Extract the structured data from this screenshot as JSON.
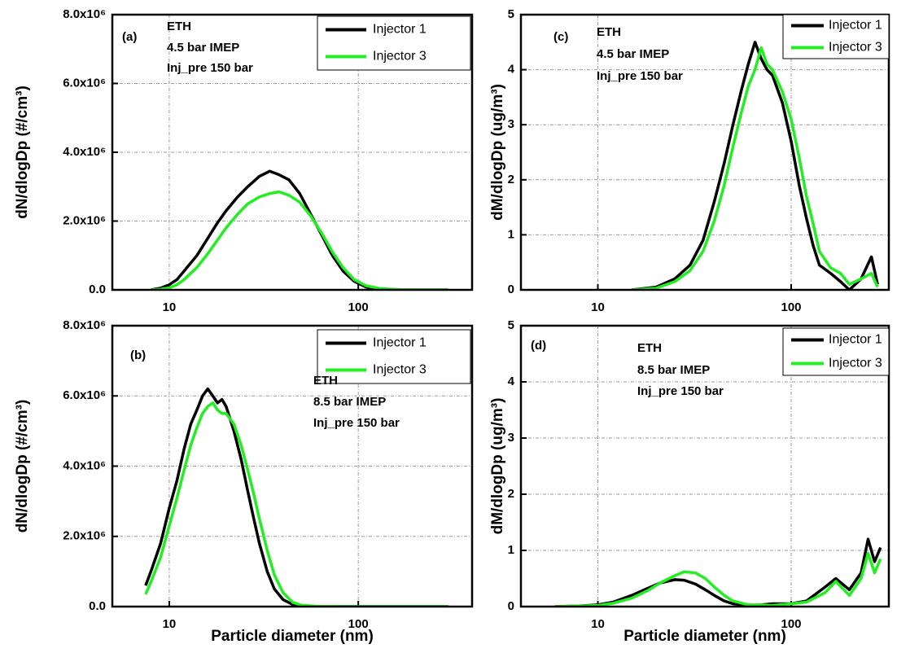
{
  "chart_data": [
    {
      "type": "line",
      "x_scale": "log",
      "xlim": [
        5,
        400
      ],
      "xticks": [
        10,
        100
      ],
      "ylim": [
        0,
        8000000
      ],
      "yticks": [
        {
          "value": 0,
          "label": "0.0"
        },
        {
          "value": 2000000,
          "label": "2.0x10⁶"
        },
        {
          "value": 4000000,
          "label": "4.0x10⁶"
        },
        {
          "value": 6000000,
          "label": "6.0x10⁶"
        },
        {
          "value": 8000000,
          "label": "8.0x10⁶"
        }
      ],
      "y_label": "dN/dlogDp (#/cm³)",
      "grid": true,
      "legend": "upper right",
      "annotations": [
        "(a)",
        "ETH",
        "4.5 bar IMEP",
        "Inj_pre 150 bar"
      ],
      "x": [
        8,
        9,
        10,
        11,
        12,
        14,
        16,
        18,
        20,
        23,
        26,
        30,
        34,
        38,
        43,
        49,
        56,
        64,
        73,
        83,
        95,
        110,
        130,
        160,
        200,
        250,
        300
      ],
      "series": [
        {
          "name": "Injector 1",
          "color": "#000000",
          "values": [
            0,
            50000,
            150000,
            300000,
            550000,
            1000000,
            1500000,
            1950000,
            2300000,
            2700000,
            3000000,
            3300000,
            3450000,
            3350000,
            3200000,
            2800000,
            2200000,
            1600000,
            1000000,
            550000,
            250000,
            80000,
            20000,
            10000,
            0,
            0,
            0
          ]
        },
        {
          "name": "Injector 3",
          "color": "#22ee22",
          "values": [
            0,
            20000,
            60000,
            150000,
            300000,
            650000,
            1050000,
            1450000,
            1800000,
            2200000,
            2500000,
            2700000,
            2800000,
            2850000,
            2750000,
            2550000,
            2150000,
            1650000,
            1100000,
            650000,
            300000,
            120000,
            40000,
            10000,
            0,
            0,
            0
          ]
        }
      ]
    },
    {
      "type": "line",
      "x_scale": "log",
      "xlim": [
        5,
        400
      ],
      "xticks": [
        10,
        100
      ],
      "ylim": [
        0,
        8000000
      ],
      "yticks": [
        {
          "value": 0,
          "label": "0.0"
        },
        {
          "value": 2000000,
          "label": "2.0x10⁶"
        },
        {
          "value": 4000000,
          "label": "4.0x10⁶"
        },
        {
          "value": 6000000,
          "label": "6.0x10⁶"
        },
        {
          "value": 8000000,
          "label": "8.0x10⁶"
        }
      ],
      "y_label": "dN/dlogDp (#/cm³)",
      "x_label": "Particle diameter (nm)",
      "grid": true,
      "legend": "upper right",
      "annotations": [
        "(b)",
        "ETH",
        "8.5 bar IMEP",
        "Inj_pre 150 bar"
      ],
      "x": [
        7.5,
        8,
        9,
        10,
        11,
        12,
        13,
        14,
        15,
        16,
        17,
        18,
        19,
        20,
        22,
        24,
        26,
        28,
        30,
        33,
        36,
        40,
        45,
        50,
        60,
        80,
        100,
        150,
        200,
        300
      ],
      "series": [
        {
          "name": "Injector 1",
          "color": "#000000",
          "values": [
            600000,
            1000000,
            1800000,
            2800000,
            3600000,
            4500000,
            5200000,
            5600000,
            6000000,
            6200000,
            6000000,
            5800000,
            5900000,
            5700000,
            5000000,
            4200000,
            3300000,
            2500000,
            1800000,
            1000000,
            500000,
            200000,
            60000,
            20000,
            0,
            0,
            0,
            0,
            0,
            0
          ]
        },
        {
          "name": "Injector 3",
          "color": "#22ee22",
          "values": [
            350000,
            700000,
            1400000,
            2300000,
            3100000,
            3900000,
            4600000,
            5100000,
            5500000,
            5700000,
            5800000,
            5600000,
            5500000,
            5500000,
            5200000,
            4600000,
            3900000,
            3200000,
            2500000,
            1600000,
            900000,
            400000,
            120000,
            40000,
            10000,
            0,
            0,
            0,
            0,
            0
          ]
        }
      ]
    },
    {
      "type": "line",
      "x_scale": "log",
      "xlim": [
        4,
        320
      ],
      "xticks": [
        10,
        100
      ],
      "ylim": [
        0,
        5
      ],
      "yticks": [
        0,
        1,
        2,
        3,
        4,
        5
      ],
      "y_label": "dM/dlogDp (ug/m³)",
      "grid": true,
      "legend": "upper right",
      "annotations": [
        "(c)",
        "ETH",
        "4.5 bar IMEP",
        "Inj_pre 150 bar"
      ],
      "x": [
        15,
        20,
        25,
        30,
        35,
        40,
        45,
        50,
        55,
        60,
        65,
        70,
        75,
        80,
        90,
        100,
        110,
        120,
        130,
        140,
        160,
        180,
        200,
        230,
        260,
        280
      ],
      "series": [
        {
          "name": "Injector 1",
          "color": "#000000",
          "values": [
            0,
            0.05,
            0.2,
            0.45,
            0.9,
            1.6,
            2.3,
            3.0,
            3.6,
            4.1,
            4.5,
            4.2,
            4.0,
            3.9,
            3.4,
            2.7,
            1.9,
            1.3,
            0.8,
            0.45,
            0.3,
            0.15,
            0,
            0.2,
            0.6,
            0.1
          ]
        },
        {
          "name": "Injector 3",
          "color": "#22ee22",
          "values": [
            0,
            0.03,
            0.15,
            0.35,
            0.7,
            1.25,
            1.9,
            2.6,
            3.2,
            3.7,
            4.0,
            4.4,
            4.1,
            4.0,
            3.6,
            3.1,
            2.4,
            1.7,
            1.2,
            0.7,
            0.4,
            0.3,
            0.1,
            0.2,
            0.3,
            0.05
          ]
        }
      ]
    },
    {
      "type": "line",
      "x_scale": "log",
      "xlim": [
        4,
        320
      ],
      "xticks": [
        10,
        100
      ],
      "ylim": [
        0,
        5
      ],
      "yticks": [
        0,
        1,
        2,
        3,
        4,
        5
      ],
      "y_label": "dM/dlogDp (ug/m³)",
      "x_label": "Particle diameter (nm)",
      "grid": true,
      "legend": "upper right",
      "annotations": [
        "(d)",
        "ETH",
        "8.5 bar IMEP",
        "Inj_pre 150 bar"
      ],
      "x": [
        6,
        8,
        10,
        12,
        15,
        18,
        21,
        25,
        28,
        32,
        36,
        40,
        45,
        50,
        60,
        70,
        80,
        100,
        120,
        150,
        170,
        200,
        230,
        250,
        270,
        290
      ],
      "series": [
        {
          "name": "Injector 1",
          "color": "#000000",
          "values": [
            0,
            0.01,
            0.03,
            0.08,
            0.2,
            0.32,
            0.42,
            0.48,
            0.47,
            0.4,
            0.3,
            0.2,
            0.1,
            0.05,
            0.02,
            0.03,
            0.05,
            0.05,
            0.1,
            0.35,
            0.5,
            0.3,
            0.6,
            1.2,
            0.8,
            1.05
          ]
        },
        {
          "name": "Injector 3",
          "color": "#22ee22",
          "values": [
            0,
            0.01,
            0.02,
            0.06,
            0.15,
            0.28,
            0.42,
            0.55,
            0.62,
            0.6,
            0.5,
            0.35,
            0.2,
            0.1,
            0.03,
            0.03,
            0.02,
            0.05,
            0.08,
            0.25,
            0.45,
            0.2,
            0.5,
            0.95,
            0.6,
            0.85
          ]
        }
      ]
    }
  ]
}
